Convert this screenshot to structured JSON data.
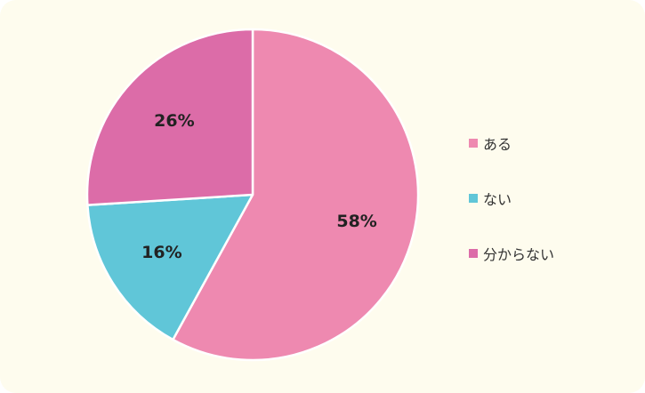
{
  "chart_data": {
    "type": "pie",
    "title": "",
    "slices": [
      {
        "label": "ある",
        "value": 58,
        "display": "58%",
        "color": "#ee89b0"
      },
      {
        "label": "ない",
        "value": 16,
        "display": "16%",
        "color": "#60c6d8"
      },
      {
        "label": "分からない",
        "value": 26,
        "display": "26%",
        "color": "#dc6ca8"
      }
    ],
    "start_angle_deg": 0,
    "direction": "clockwise",
    "legend_position": "right"
  },
  "legend": {
    "items": [
      {
        "label": "ある",
        "color": "#ee89b0"
      },
      {
        "label": "ない",
        "color": "#60c6d8"
      },
      {
        "label": "分からない",
        "color": "#dc6ca8"
      }
    ]
  },
  "colors": {
    "background": "#fefcee",
    "slice_border": "#ffffff"
  }
}
